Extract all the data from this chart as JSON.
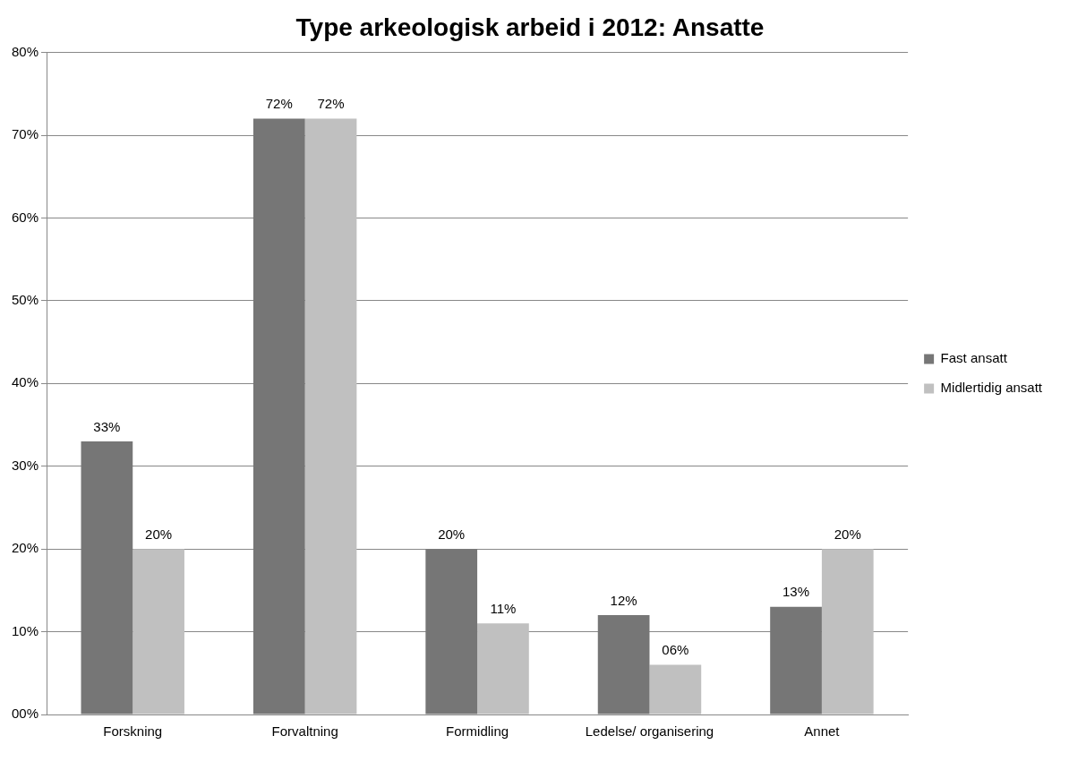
{
  "chart_data": {
    "type": "bar",
    "title": "Type arkeologisk arbeid i 2012: Ansatte",
    "categories": [
      "Forskning",
      "Forvaltning",
      "Formidling",
      "Ledelse/ organisering",
      "Annet"
    ],
    "series": [
      {
        "name": "Fast ansatt",
        "color": "#767676",
        "values": [
          33,
          72,
          20,
          12,
          13
        ],
        "value_labels": [
          "33%",
          "72%",
          "20%",
          "12%",
          "13%"
        ]
      },
      {
        "name": "Midlertidig ansatt",
        "color": "#c0c0c0",
        "values": [
          20,
          72,
          11,
          6,
          20
        ],
        "value_labels": [
          "20%",
          "72%",
          "11%",
          "06%",
          "20%"
        ]
      }
    ],
    "ylim": [
      0,
      80
    ],
    "yticks": [
      {
        "value": 0,
        "label": "00%"
      },
      {
        "value": 10,
        "label": "10%"
      },
      {
        "value": 20,
        "label": "20%"
      },
      {
        "value": 30,
        "label": "30%"
      },
      {
        "value": 40,
        "label": "40%"
      },
      {
        "value": 50,
        "label": "50%"
      },
      {
        "value": 60,
        "label": "60%"
      },
      {
        "value": 70,
        "label": "70%"
      },
      {
        "value": 80,
        "label": "80%"
      }
    ],
    "grid": "y",
    "legend": "right"
  }
}
